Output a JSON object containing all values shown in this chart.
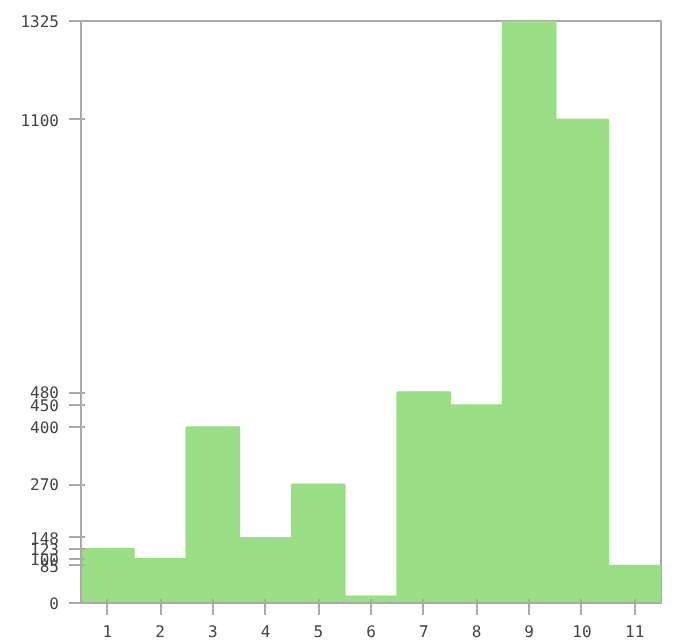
{
  "chart_data": {
    "type": "bar",
    "categories": [
      "1",
      "2",
      "3",
      "4",
      "5",
      "6",
      "7",
      "8",
      "9",
      "10",
      "11"
    ],
    "values": [
      123,
      100,
      400,
      148,
      270,
      15,
      480,
      450,
      1325,
      1100,
      85
    ],
    "color": "#9ade86",
    "ylim": [
      0,
      1325
    ],
    "yticks": [
      0,
      85,
      100,
      123,
      148,
      270,
      400,
      450,
      480,
      1100,
      1325
    ],
    "grid": false
  }
}
